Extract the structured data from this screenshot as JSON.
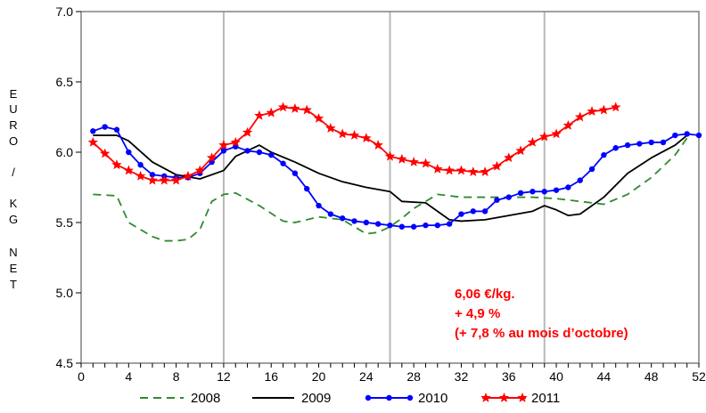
{
  "chart_data": {
    "type": "line",
    "xlim": [
      0,
      52
    ],
    "ylim": [
      4.5,
      7.0
    ],
    "x_ticks": [
      "0",
      "4",
      "8",
      "12",
      "16",
      "20",
      "24",
      "28",
      "32",
      "36",
      "40",
      "44",
      "48",
      "52"
    ],
    "y_ticks": [
      "4.5",
      "5.0",
      "5.5",
      "6.0",
      "6.5",
      "7.0"
    ],
    "ylabel_chars": [
      "E",
      "U",
      "R",
      "O",
      "/",
      "K",
      "G",
      "N",
      "E",
      "T"
    ],
    "annotation": [
      "6,06 €/kg.",
      "+ 4,9 %",
      "(+ 7,8 % au mois d’octobre)"
    ],
    "grid": "vertical at 12, 26, 39",
    "legend_position": "bottom",
    "series": [
      {
        "name": "2008",
        "color": "#2e8b2e",
        "style": "dashed",
        "x": [
          1,
          3,
          4,
          6,
          7,
          8,
          9,
          10,
          11,
          12,
          13,
          15,
          17,
          18,
          19,
          20,
          22,
          24,
          25,
          26,
          27,
          28,
          30,
          32,
          34,
          36,
          38,
          40,
          42,
          44,
          46,
          48,
          50,
          51
        ],
        "y": [
          5.7,
          5.69,
          5.5,
          5.4,
          5.37,
          5.37,
          5.38,
          5.45,
          5.65,
          5.7,
          5.71,
          5.62,
          5.51,
          5.5,
          5.52,
          5.54,
          5.52,
          5.42,
          5.43,
          5.47,
          5.53,
          5.6,
          5.7,
          5.68,
          5.68,
          5.68,
          5.68,
          5.67,
          5.65,
          5.63,
          5.7,
          5.82,
          5.98,
          6.1
        ]
      },
      {
        "name": "2009",
        "color": "#000000",
        "style": "solid",
        "x": [
          1,
          3,
          4,
          6,
          8,
          10,
          12,
          13,
          15,
          16,
          18,
          20,
          22,
          24,
          26,
          27,
          29,
          30,
          31,
          32,
          34,
          36,
          38,
          39,
          40,
          41,
          42,
          44,
          46,
          48,
          50,
          51
        ],
        "y": [
          6.12,
          6.12,
          6.08,
          5.93,
          5.84,
          5.81,
          5.87,
          5.97,
          6.05,
          6.0,
          5.93,
          5.85,
          5.79,
          5.75,
          5.72,
          5.65,
          5.64,
          5.58,
          5.52,
          5.51,
          5.52,
          5.55,
          5.58,
          5.62,
          5.59,
          5.55,
          5.56,
          5.68,
          5.85,
          5.96,
          6.05,
          6.12
        ]
      },
      {
        "name": "2010",
        "color": "#0000ff",
        "style": "solid-dots",
        "x": [
          1,
          2,
          3,
          4,
          5,
          6,
          7,
          8,
          9,
          10,
          11,
          12,
          13,
          14,
          15,
          16,
          17,
          18,
          19,
          20,
          21,
          22,
          23,
          24,
          25,
          26,
          27,
          28,
          29,
          30,
          31,
          32,
          33,
          34,
          35,
          36,
          37,
          38,
          39,
          40,
          41,
          42,
          43,
          44,
          45,
          46,
          47,
          48,
          49,
          50,
          51,
          52
        ],
        "y": [
          6.15,
          6.18,
          6.16,
          6.0,
          5.91,
          5.84,
          5.83,
          5.82,
          5.82,
          5.85,
          5.93,
          6.01,
          6.04,
          6.01,
          6.0,
          5.98,
          5.92,
          5.85,
          5.74,
          5.62,
          5.56,
          5.53,
          5.51,
          5.5,
          5.49,
          5.48,
          5.47,
          5.47,
          5.48,
          5.48,
          5.49,
          5.56,
          5.58,
          5.58,
          5.66,
          5.68,
          5.71,
          5.72,
          5.72,
          5.73,
          5.75,
          5.8,
          5.88,
          5.98,
          6.03,
          6.05,
          6.06,
          6.07,
          6.07,
          6.12,
          6.13,
          6.12
        ]
      },
      {
        "name": "2011",
        "color": "#ff0000",
        "style": "solid-stars",
        "x": [
          1,
          2,
          3,
          4,
          5,
          6,
          7,
          8,
          9,
          10,
          11,
          12,
          13,
          14,
          15,
          16,
          17,
          18,
          19,
          20,
          21,
          22,
          23,
          24,
          25,
          26,
          27,
          28,
          29,
          30,
          31,
          32,
          33,
          34,
          35,
          36,
          37,
          38,
          39,
          40,
          41,
          42,
          43,
          44,
          45
        ],
        "y": [
          6.07,
          5.99,
          5.91,
          5.87,
          5.83,
          5.8,
          5.8,
          5.8,
          5.83,
          5.87,
          5.96,
          6.05,
          6.07,
          6.14,
          6.26,
          6.28,
          6.32,
          6.31,
          6.3,
          6.24,
          6.17,
          6.13,
          6.12,
          6.1,
          6.05,
          5.97,
          5.95,
          5.93,
          5.92,
          5.88,
          5.87,
          5.87,
          5.86,
          5.86,
          5.9,
          5.96,
          6.01,
          6.07,
          6.11,
          6.13,
          6.19,
          6.25,
          6.29,
          6.3,
          6.32
        ]
      }
    ]
  }
}
